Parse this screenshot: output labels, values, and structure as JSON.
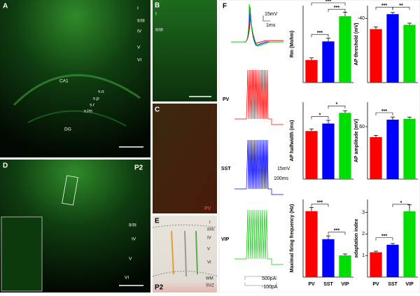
{
  "figure": {
    "A": {
      "label": "A",
      "layers": [
        "I",
        "II/III",
        "IV",
        "V",
        "VI"
      ],
      "regions": [
        "CA1",
        "s.o",
        "s.p",
        "s.r",
        "s.lm",
        "DG"
      ]
    },
    "B": {
      "label": "B",
      "layers": [
        "I",
        "II/III"
      ]
    },
    "C": {
      "label": "C",
      "stain": "PV"
    },
    "D": {
      "label": "D",
      "age": "P2",
      "layers": [
        "II/III",
        "IV",
        "V",
        "VI"
      ]
    },
    "E": {
      "label": "E",
      "layers": [
        "I",
        "II/III",
        "IV",
        "V",
        "VI",
        "WM",
        "SVZ"
      ],
      "age": "P2"
    },
    "F": {
      "label": "F",
      "traces": [
        "PV",
        "SST",
        "VIP"
      ],
      "scale_top": [
        "15mV",
        "1ms"
      ],
      "scale_mid": [
        "15mV",
        "100ms"
      ],
      "scale_bottom": [
        "500pA",
        "-100pA"
      ]
    }
  },
  "categories": [
    "PV",
    "SST",
    "VIP"
  ],
  "colors": [
    "#ff0000",
    "#0000ff",
    "#00dd00"
  ],
  "chart_data": [
    {
      "type": "bar",
      "ylabel": "Rm (Mohm)",
      "values": [
        85,
        155,
        250
      ],
      "errors": [
        8,
        12,
        15
      ],
      "ylim": [
        0,
        290
      ],
      "annotations": [
        "***",
        "***",
        "***"
      ]
    },
    {
      "type": "bar",
      "ylabel": "AP threshold (mV)",
      "values": [
        -35,
        -42,
        -37
      ],
      "errors": [
        1,
        0.8,
        0.8
      ],
      "ylim": [
        -10,
        -46
      ],
      "yticks": [
        -40
      ],
      "annotations": [
        "***",
        "**"
      ]
    },
    {
      "type": "bar",
      "ylabel": "AP halfwidth (ms)",
      "values": [
        0.45,
        0.52,
        0.62
      ],
      "errors": [
        0.02,
        0.03,
        0.02
      ],
      "ylim": [
        0,
        0.72
      ],
      "annotations": [
        "*",
        "*"
      ]
    },
    {
      "type": "bar",
      "ylabel": "AP amplitude (mV)",
      "values": [
        48,
        68,
        69
      ],
      "errors": [
        2,
        3,
        2
      ],
      "ylim": [
        0,
        88
      ],
      "yticks": [
        60
      ],
      "annotations": [
        "***"
      ]
    },
    {
      "type": "bar",
      "ylabel": "Maximal firing frequency (Hz)",
      "values": [
        365,
        210,
        120
      ],
      "errors": [
        20,
        18,
        8
      ],
      "ylim": [
        0,
        430
      ],
      "annotations": [
        "***",
        "***"
      ]
    },
    {
      "type": "bar",
      "ylabel": "adaptation index",
      "values": [
        1.15,
        1.5,
        3.05
      ],
      "errors": [
        0.05,
        0.06,
        0.3
      ],
      "ylim": [
        0,
        3.6
      ],
      "yticks": [
        1,
        2,
        3
      ],
      "annotations": [
        "***",
        "*"
      ]
    }
  ]
}
